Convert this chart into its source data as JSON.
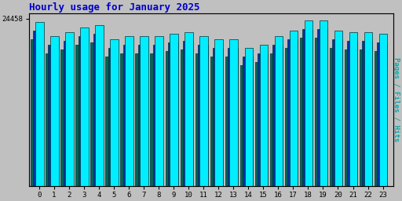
{
  "title": "Hourly usage for January 2025",
  "title_color": "#0000cc",
  "title_fontsize": 9,
  "ylabel_right": "Pages / Files / Hits",
  "ylabel_right_color": "#00aaaa",
  "xlabel_labels": [
    "0",
    "1",
    "2",
    "3",
    "4",
    "5",
    "6",
    "7",
    "8",
    "9",
    "10",
    "11",
    "12",
    "13",
    "14",
    "15",
    "16",
    "17",
    "18",
    "19",
    "20",
    "21",
    "22",
    "23"
  ],
  "ytick_label": "24458",
  "background_color": "#c0c0c0",
  "plot_bg_color": "#c0c0c0",
  "bar_color_cyan": "#00eeff",
  "bar_color_dark": "#006655",
  "bar_color_blue": "#0033aa",
  "bar_edgecolor": "#003333",
  "hits_values": [
    95,
    87,
    89,
    92,
    93,
    85,
    87,
    87,
    87,
    88,
    89,
    87,
    85,
    85,
    80,
    82,
    87,
    90,
    96,
    96,
    90,
    89,
    89,
    88
  ],
  "files_values": [
    90,
    82,
    84,
    87,
    88,
    80,
    82,
    82,
    82,
    83,
    84,
    82,
    80,
    80,
    75,
    77,
    82,
    85,
    91,
    91,
    85,
    84,
    84,
    83
  ],
  "pages_values": [
    85,
    77,
    79,
    82,
    83,
    75,
    77,
    77,
    77,
    78,
    79,
    77,
    75,
    75,
    70,
    72,
    77,
    80,
    86,
    86,
    80,
    79,
    79,
    78
  ],
  "bar_width": 0.28,
  "ylim_max": 100,
  "ytick_pos": 97,
  "grid_color": "#aaaaaa",
  "font_family": "monospace"
}
